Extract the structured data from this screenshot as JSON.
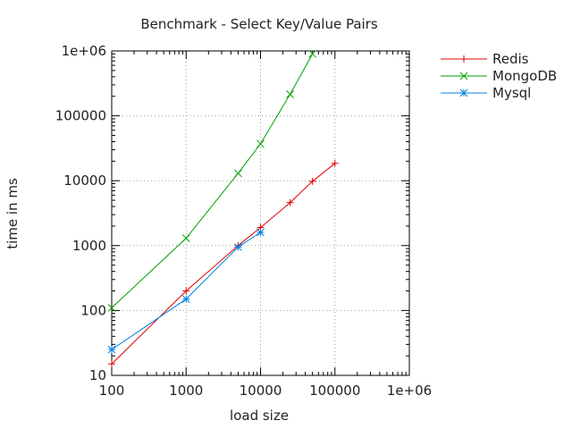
{
  "chart_data": {
    "type": "line",
    "title": "Benchmark - Select Key/Value Pairs",
    "xlabel": "load size",
    "ylabel": "time in ms",
    "xscale": "log",
    "yscale": "log",
    "xlim": [
      100,
      1000000
    ],
    "ylim": [
      10,
      1000000
    ],
    "x_ticks": [
      100,
      1000,
      10000,
      100000,
      1000000
    ],
    "x_tick_labels": [
      "100",
      "1000",
      "10000",
      "100000",
      "1e+06"
    ],
    "y_ticks": [
      10,
      100,
      1000,
      10000,
      100000,
      1000000
    ],
    "y_tick_labels": [
      "10",
      "100",
      "1000",
      "10000",
      "100000",
      "1e+06"
    ],
    "grid": true,
    "legend_position": "outside-right",
    "series": [
      {
        "name": "Redis",
        "color": "#e00000",
        "marker": "plus",
        "x": [
          100,
          1000,
          5000,
          10000,
          25000,
          50000,
          100000
        ],
        "y": [
          15,
          200,
          1000,
          1900,
          4600,
          9800,
          18500
        ]
      },
      {
        "name": "MongoDB",
        "color": "#00a000",
        "marker": "cross",
        "x": [
          100,
          1000,
          5000,
          10000,
          25000,
          50000
        ],
        "y": [
          110,
          1300,
          13000,
          37000,
          215000,
          900000
        ]
      },
      {
        "name": "Mysql",
        "color": "#0080e0",
        "marker": "star",
        "x": [
          100,
          1000,
          5000,
          10000
        ],
        "y": [
          25,
          150,
          950,
          1600
        ]
      }
    ]
  }
}
